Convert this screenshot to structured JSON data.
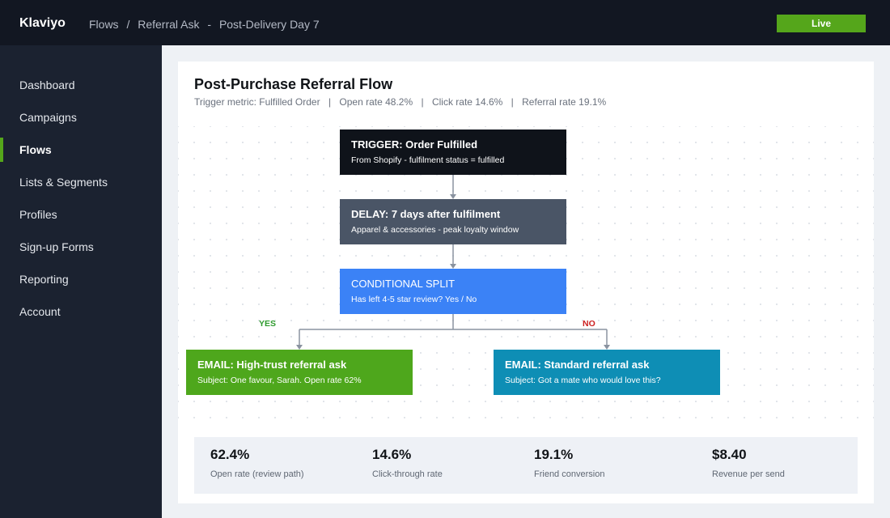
{
  "header": {
    "brand": "Klaviyo",
    "breadcrumb": [
      "Flows",
      "/",
      "Referral Ask",
      "-",
      "Post-Delivery Day 7"
    ],
    "status_button": "Live"
  },
  "sidebar": {
    "items": [
      {
        "label": "Dashboard"
      },
      {
        "label": "Campaigns"
      },
      {
        "label": "Flows"
      },
      {
        "label": "Lists & Segments"
      },
      {
        "label": "Profiles"
      },
      {
        "label": "Sign-up Forms"
      },
      {
        "label": "Reporting"
      },
      {
        "label": "Account"
      }
    ],
    "active": "Flows"
  },
  "flow": {
    "title": "Post-Purchase Referral Flow",
    "meta": [
      "Trigger metric: Fulfilled Order",
      "|",
      "Open rate 48.2%",
      "|",
      "Click rate 14.6%",
      "|",
      "Referral rate 19.1%"
    ],
    "nodes": {
      "trigger": {
        "title": "TRIGGER: Order Fulfilled",
        "subtitle": "From Shopify - fulfilment status = fulfilled"
      },
      "delay": {
        "title": "DELAY: 7 days after fulfilment",
        "subtitle": "Apparel & accessories - peak loyalty window"
      },
      "split": {
        "title": "CONDITIONAL SPLIT",
        "subtitle": "Has left 4-5 star review? Yes / No"
      },
      "email_yes": {
        "title": "EMAIL: High-trust referral ask",
        "subtitle": "Subject: One favour, Sarah. Open rate 62%"
      },
      "email_no": {
        "title": "EMAIL: Standard referral ask",
        "subtitle": "Subject: Got a mate who would love this?"
      }
    },
    "branch_labels": {
      "yes": "YES",
      "no": "NO"
    }
  },
  "stats": [
    {
      "value": "62.4%",
      "label": "Open rate (review path)"
    },
    {
      "value": "14.6%",
      "label": "Click-through rate"
    },
    {
      "value": "19.1%",
      "label": "Friend conversion"
    },
    {
      "value": "$8.40",
      "label": "Revenue per send"
    }
  ],
  "colors": {
    "topbar": "#121722",
    "sidebar": "#1b2230",
    "accent_green": "#55a61b",
    "trigger_node": "#0f131a",
    "delay_node": "#4a5566",
    "split_node": "#3b82f6",
    "email_yes_node": "#4ea71c",
    "email_no_node": "#0e8eb5",
    "yes_label": "#2e9b2e",
    "no_label": "#cc2020"
  }
}
